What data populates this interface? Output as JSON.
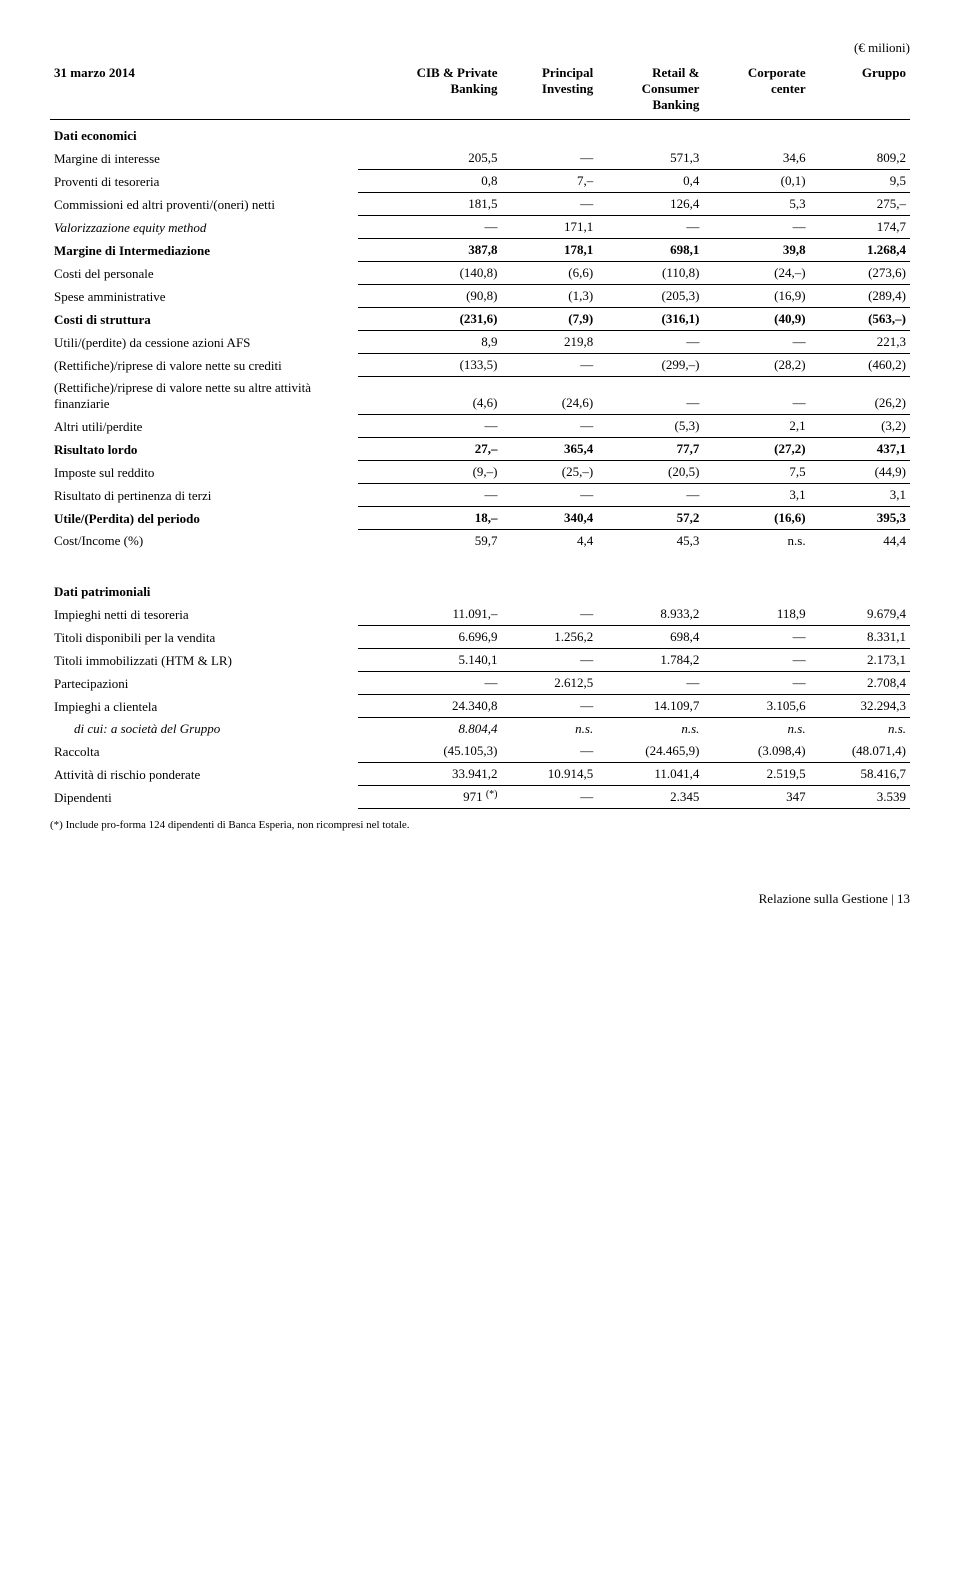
{
  "unit": "(€ milioni)",
  "header": {
    "date": "31 marzo 2014",
    "cols": [
      "CIB & Private\nBanking",
      "Principal\nInvesting",
      "Retail &\nConsumer\nBanking",
      "Corporate\ncenter",
      "Gruppo"
    ]
  },
  "section1_title": "Dati economici",
  "rows1": [
    {
      "label": "Margine di interesse",
      "c": [
        "205,5",
        "—",
        "571,3",
        "34,6",
        "809,2"
      ]
    },
    {
      "label": "Proventi di tesoreria",
      "c": [
        "0,8",
        "7,–",
        "0,4",
        "(0,1)",
        "9,5"
      ]
    },
    {
      "label": "Commissioni ed altri proventi/(oneri) netti",
      "c": [
        "181,5",
        "—",
        "126,4",
        "5,3",
        "275,–"
      ]
    },
    {
      "label": "Valorizzazione equity method",
      "italicLabel": true,
      "c": [
        "—",
        "171,1",
        "—",
        "—",
        "174,7"
      ]
    },
    {
      "label": "Margine di Intermediazione",
      "bold": true,
      "c": [
        "387,8",
        "178,1",
        "698,1",
        "39,8",
        "1.268,4"
      ]
    },
    {
      "label": "Costi del personale",
      "c": [
        "(140,8)",
        "(6,6)",
        "(110,8)",
        "(24,–)",
        "(273,6)"
      ]
    },
    {
      "label": "Spese amministrative",
      "c": [
        "(90,8)",
        "(1,3)",
        "(205,3)",
        "(16,9)",
        "(289,4)"
      ]
    },
    {
      "label": "Costi di struttura",
      "bold": true,
      "c": [
        "(231,6)",
        "(7,9)",
        "(316,1)",
        "(40,9)",
        "(563,–)"
      ]
    },
    {
      "label": "Utili/(perdite) da cessione azioni AFS",
      "c": [
        "8,9",
        "219,8",
        "—",
        "—",
        "221,3"
      ]
    },
    {
      "label": "(Rettifiche)/riprese di valore nette su crediti",
      "c": [
        "(133,5)",
        "—",
        "(299,–)",
        "(28,2)",
        "(460,2)"
      ]
    },
    {
      "label": "(Rettifiche)/riprese di valore nette su altre attività finanziarie",
      "c": [
        "(4,6)",
        "(24,6)",
        "—",
        "—",
        "(26,2)"
      ]
    },
    {
      "label": "Altri utili/perdite",
      "c": [
        "—",
        "—",
        "(5,3)",
        "2,1",
        "(3,2)"
      ]
    },
    {
      "label": "Risultato lordo",
      "bold": true,
      "c": [
        "27,–",
        "365,4",
        "77,7",
        "(27,2)",
        "437,1"
      ]
    },
    {
      "label": "Imposte sul reddito",
      "c": [
        "(9,–)",
        "(25,–)",
        "(20,5)",
        "7,5",
        "(44,9)"
      ]
    },
    {
      "label": "Risultato di pertinenza di terzi",
      "c": [
        "—",
        "—",
        "—",
        "3,1",
        "3,1"
      ]
    },
    {
      "label": "Utile/(Perdita) del periodo",
      "bold": true,
      "c": [
        "18,–",
        "340,4",
        "57,2",
        "(16,6)",
        "395,3"
      ]
    },
    {
      "label": "Cost/Income (%)",
      "noBorder": true,
      "c": [
        "59,7",
        "4,4",
        "45,3",
        "n.s.",
        "44,4"
      ]
    }
  ],
  "section2_title": "Dati patrimoniali",
  "rows2": [
    {
      "label": "Impieghi netti di tesoreria",
      "c": [
        "11.091,–",
        "—",
        "8.933,2",
        "118,9",
        "9.679,4"
      ]
    },
    {
      "label": "Titoli disponibili per la vendita",
      "c": [
        "6.696,9",
        "1.256,2",
        "698,4",
        "—",
        "8.331,1"
      ]
    },
    {
      "label": "Titoli immobilizzati (HTM & LR)",
      "c": [
        "5.140,1",
        "—",
        "1.784,2",
        "—",
        "2.173,1"
      ]
    },
    {
      "label": "Partecipazioni",
      "c": [
        "—",
        "2.612,5",
        "—",
        "—",
        "2.708,4"
      ]
    },
    {
      "label": "Impieghi a clientela",
      "c": [
        "24.340,8",
        "—",
        "14.109,7",
        "3.105,6",
        "32.294,3"
      ]
    },
    {
      "label": "di cui: a società del Gruppo",
      "indent": true,
      "italic": true,
      "noBorder": true,
      "c": [
        "8.804,4",
        "n.s.",
        "n.s.",
        "n.s.",
        "n.s."
      ]
    },
    {
      "label": "Raccolta",
      "c": [
        "(45.105,3)",
        "—",
        "(24.465,9)",
        "(3.098,4)",
        "(48.071,4)"
      ]
    },
    {
      "label": "Attività di rischio ponderate",
      "c": [
        "33.941,2",
        "10.914,5",
        "11.041,4",
        "2.519,5",
        "58.416,7"
      ]
    },
    {
      "label": "Dipendenti",
      "note": "(*)",
      "c": [
        "971",
        "—",
        "2.345",
        "347",
        "3.539"
      ]
    }
  ],
  "footnote": "(*) Include pro-forma 124 dipendenti di Banca Esperia, non ricompresi nel totale.",
  "footer_text": "Relazione sulla Gestione",
  "footer_page": "13"
}
